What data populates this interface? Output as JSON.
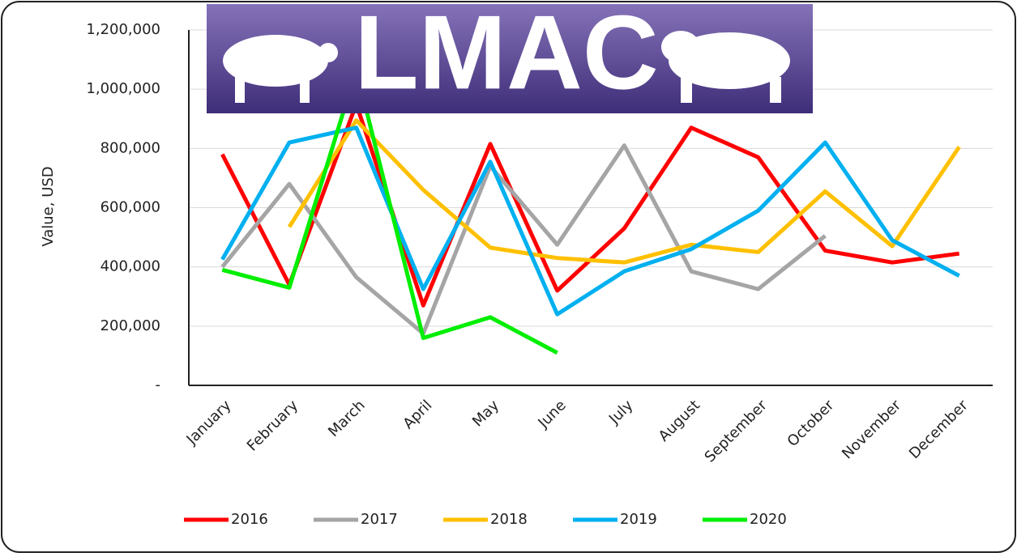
{
  "chart_data": {
    "type": "line",
    "logo_text": "LMAC",
    "y_label": "Value, USD",
    "categories": [
      "January",
      "February",
      "March",
      "April",
      "May",
      "June",
      "July",
      "August",
      "September",
      "October",
      "November",
      "December"
    ],
    "series": [
      {
        "name": "2016",
        "color": "#ff0000",
        "values": [
          780000,
          340000,
          950000,
          270000,
          815000,
          320000,
          530000,
          870000,
          770000,
          455000,
          415000,
          445000
        ]
      },
      {
        "name": "2017",
        "color": "#a5a5a5",
        "values": [
          400000,
          680000,
          365000,
          175000,
          740000,
          475000,
          810000,
          385000,
          325000,
          505000,
          null,
          null
        ]
      },
      {
        "name": "2018",
        "color": "#ffc000",
        "values": [
          null,
          535000,
          895000,
          660000,
          465000,
          430000,
          415000,
          475000,
          450000,
          655000,
          470000,
          805000
        ]
      },
      {
        "name": "2019",
        "color": "#00b0f0",
        "values": [
          425000,
          820000,
          870000,
          325000,
          755000,
          240000,
          385000,
          460000,
          590000,
          820000,
          490000,
          370000
        ]
      },
      {
        "name": "2020",
        "color": "#00ee00",
        "values": [
          390000,
          330000,
          1065000,
          160000,
          230000,
          110000,
          null,
          null,
          null,
          null,
          null,
          null
        ]
      }
    ],
    "ylim": [
      0,
      1200000
    ],
    "yticks": [
      {
        "value": 0,
        "label": "-"
      },
      {
        "value": 200000,
        "label": "200,000"
      },
      {
        "value": 400000,
        "label": "400,000"
      },
      {
        "value": 600000,
        "label": "600,000"
      },
      {
        "value": 800000,
        "label": "800,000"
      },
      {
        "value": 1000000,
        "label": "1,000,000"
      },
      {
        "value": 1200000,
        "label": "1,200,000"
      }
    ],
    "grid": true,
    "legend": "bottom"
  }
}
